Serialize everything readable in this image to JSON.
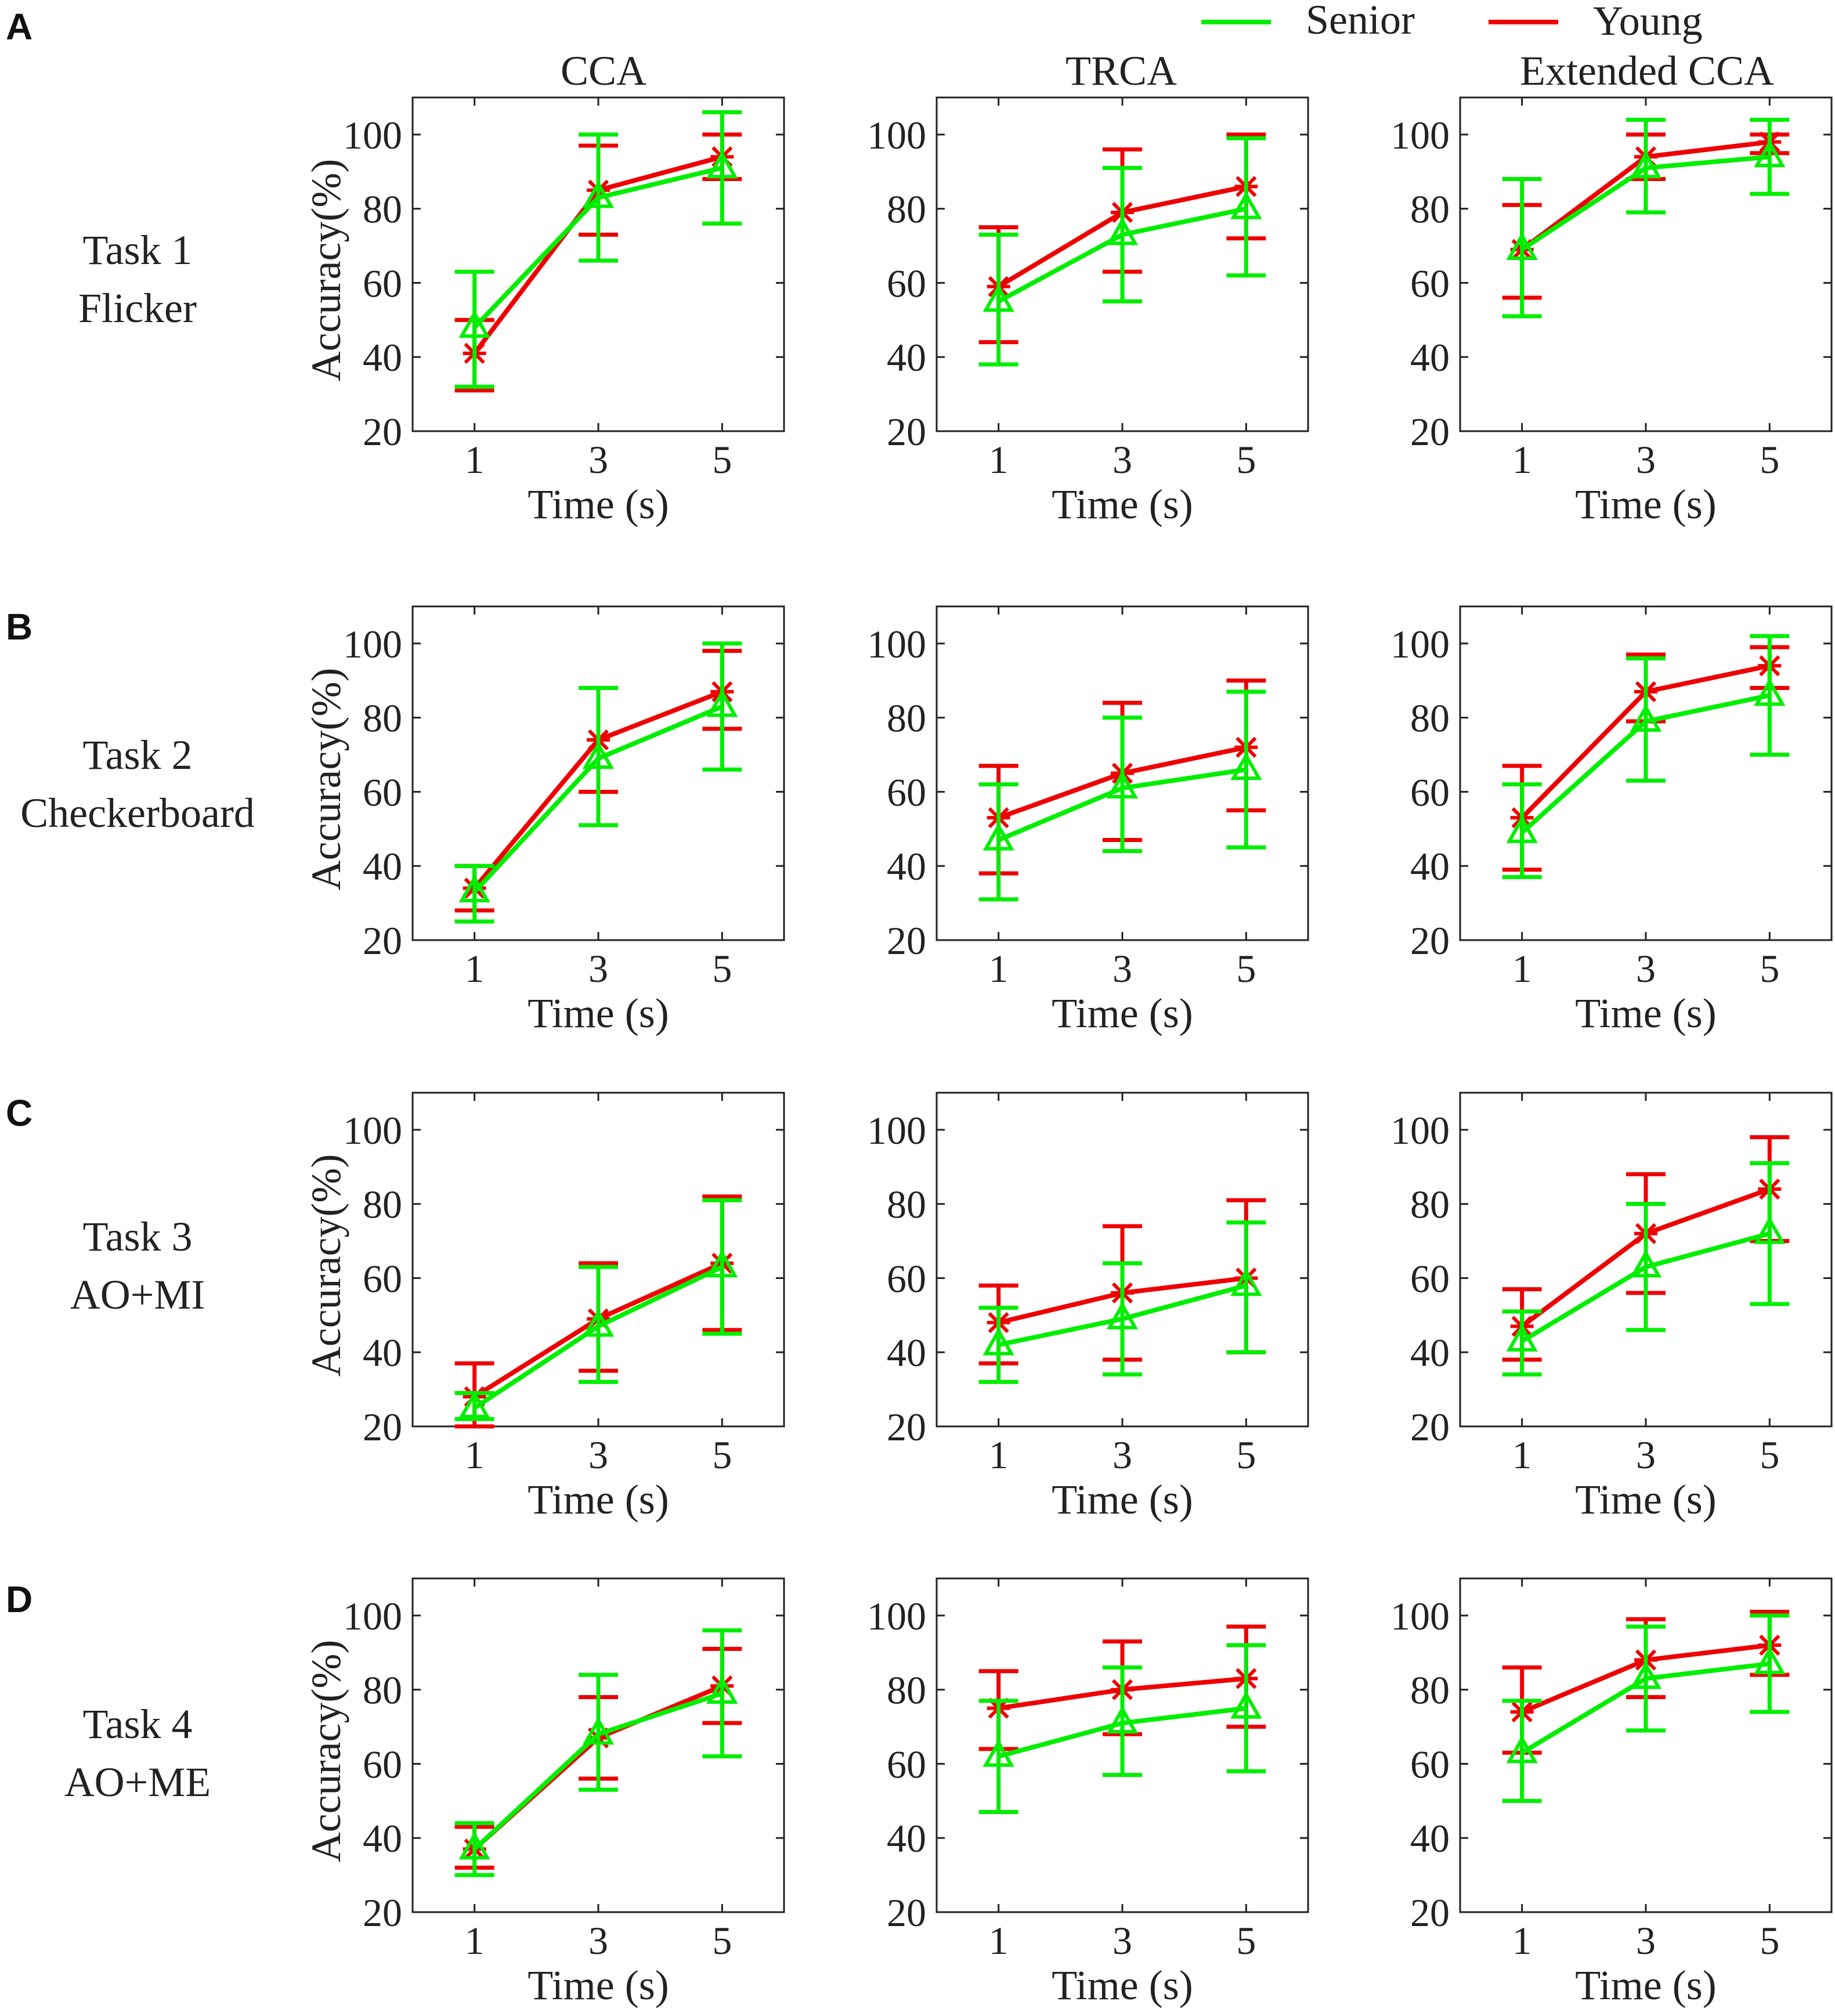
{
  "legend": {
    "entries": [
      {
        "name": "Senior",
        "color": "#00ee00"
      },
      {
        "name": "Young",
        "color": "#ee0000"
      }
    ],
    "placement": "top-right"
  },
  "column_titles": [
    "CCA",
    "TRCA",
    "Extended CCA"
  ],
  "rows": [
    {
      "letter": "A",
      "task_line1": "Task 1",
      "task_line2": "Flicker"
    },
    {
      "letter": "B",
      "task_line1": "Task 2",
      "task_line2": "Checkerboard"
    },
    {
      "letter": "C",
      "task_line1": "Task 3",
      "task_line2": "AO+MI"
    },
    {
      "letter": "D",
      "task_line1": "Task 4",
      "task_line2": "AO+ME"
    }
  ],
  "axis": {
    "ylabel": "Accuracy(%)",
    "xlabel": "Time (s)",
    "yticks": [
      20,
      40,
      60,
      80,
      100
    ],
    "xticks": [
      1,
      3,
      5
    ],
    "ylim": [
      20,
      110
    ],
    "xlim": [
      0,
      6
    ]
  },
  "chart_data": [
    {
      "type": "line",
      "row": 0,
      "col": 0,
      "title": "CCA",
      "task": "Task 1 Flicker",
      "x": [
        1,
        3,
        5
      ],
      "series": [
        {
          "name": "Senior",
          "values": [
            48,
            83,
            91
          ],
          "err_low": [
            32,
            66,
            76
          ],
          "err_high": [
            63,
            100,
            106
          ]
        },
        {
          "name": "Young",
          "values": [
            41,
            85,
            94
          ],
          "err_low": [
            31,
            73,
            88
          ],
          "err_high": [
            50,
            97,
            100
          ]
        }
      ]
    },
    {
      "type": "line",
      "row": 0,
      "col": 1,
      "title": "TRCA",
      "task": "Task 1 Flicker",
      "x": [
        1,
        3,
        5
      ],
      "series": [
        {
          "name": "Senior",
          "values": [
            55,
            73,
            80
          ],
          "err_low": [
            38,
            55,
            62
          ],
          "err_high": [
            73,
            91,
            99
          ]
        },
        {
          "name": "Young",
          "values": [
            59,
            79,
            86
          ],
          "err_low": [
            44,
            63,
            72
          ],
          "err_high": [
            75,
            96,
            100
          ]
        }
      ]
    },
    {
      "type": "line",
      "row": 0,
      "col": 2,
      "title": "Extended CCA",
      "task": "Task 1 Flicker",
      "x": [
        1,
        3,
        5
      ],
      "series": [
        {
          "name": "Senior",
          "values": [
            69,
            91,
            94
          ],
          "err_low": [
            51,
            79,
            84
          ],
          "err_high": [
            88,
            104,
            104
          ]
        },
        {
          "name": "Young",
          "values": [
            69,
            94,
            98
          ],
          "err_low": [
            56,
            88,
            95
          ],
          "err_high": [
            81,
            100,
            100
          ]
        }
      ]
    },
    {
      "type": "line",
      "row": 1,
      "col": 0,
      "title": "CCA",
      "task": "Task 2 Checkerboard",
      "x": [
        1,
        3,
        5
      ],
      "series": [
        {
          "name": "Senior",
          "values": [
            33,
            69,
            83
          ],
          "err_low": [
            25,
            51,
            66
          ],
          "err_high": [
            40,
            88,
            100
          ]
        },
        {
          "name": "Young",
          "values": [
            34,
            74,
            87
          ],
          "err_low": [
            28,
            60,
            77
          ],
          "err_high": [
            40,
            88,
            98
          ]
        }
      ]
    },
    {
      "type": "line",
      "row": 1,
      "col": 1,
      "title": "TRCA",
      "task": "Task 2 Checkerboard",
      "x": [
        1,
        3,
        5
      ],
      "series": [
        {
          "name": "Senior",
          "values": [
            47,
            61,
            66
          ],
          "err_low": [
            31,
            44,
            45
          ],
          "err_high": [
            62,
            80,
            87
          ]
        },
        {
          "name": "Young",
          "values": [
            53,
            65,
            72
          ],
          "err_low": [
            38,
            47,
            55
          ],
          "err_high": [
            67,
            84,
            90
          ]
        }
      ]
    },
    {
      "type": "line",
      "row": 1,
      "col": 2,
      "title": "Extended CCA",
      "task": "Task 2 Checkerboard",
      "x": [
        1,
        3,
        5
      ],
      "series": [
        {
          "name": "Senior",
          "values": [
            49,
            79,
            86
          ],
          "err_low": [
            37,
            63,
            70
          ],
          "err_high": [
            62,
            96,
            102
          ]
        },
        {
          "name": "Young",
          "values": [
            53,
            87,
            94
          ],
          "err_low": [
            39,
            79,
            88
          ],
          "err_high": [
            67,
            97,
            99
          ]
        }
      ]
    },
    {
      "type": "line",
      "row": 2,
      "col": 0,
      "title": "CCA",
      "task": "Task 3 AO+MI",
      "x": [
        1,
        3,
        5
      ],
      "series": [
        {
          "name": "Senior",
          "values": [
            25,
            47,
            63
          ],
          "err_low": [
            22,
            32,
            45
          ],
          "err_high": [
            29,
            63,
            81
          ]
        },
        {
          "name": "Young",
          "values": [
            28,
            49,
            64
          ],
          "err_low": [
            20,
            35,
            46
          ],
          "err_high": [
            37,
            64,
            82
          ]
        }
      ]
    },
    {
      "type": "line",
      "row": 2,
      "col": 1,
      "title": "TRCA",
      "task": "Task 3 AO+MI",
      "x": [
        1,
        3,
        5
      ],
      "series": [
        {
          "name": "Senior",
          "values": [
            42,
            49,
            58
          ],
          "err_low": [
            32,
            34,
            40
          ],
          "err_high": [
            52,
            64,
            75
          ]
        },
        {
          "name": "Young",
          "values": [
            48,
            56,
            60
          ],
          "err_low": [
            37,
            38,
            40
          ],
          "err_high": [
            58,
            74,
            81
          ]
        }
      ]
    },
    {
      "type": "line",
      "row": 2,
      "col": 2,
      "title": "Extended CCA",
      "task": "Task 3 AO+MI",
      "x": [
        1,
        3,
        5
      ],
      "series": [
        {
          "name": "Senior",
          "values": [
            43,
            63,
            72
          ],
          "err_low": [
            34,
            46,
            53
          ],
          "err_high": [
            51,
            80,
            91
          ]
        },
        {
          "name": "Young",
          "values": [
            47,
            72,
            84
          ],
          "err_low": [
            38,
            56,
            70
          ],
          "err_high": [
            57,
            88,
            98
          ]
        }
      ]
    },
    {
      "type": "line",
      "row": 3,
      "col": 0,
      "title": "CCA",
      "task": "Task 4 AO+ME",
      "x": [
        1,
        3,
        5
      ],
      "series": [
        {
          "name": "Senior",
          "values": [
            37,
            68,
            79
          ],
          "err_low": [
            30,
            53,
            62
          ],
          "err_high": [
            44,
            84,
            96
          ]
        },
        {
          "name": "Young",
          "values": [
            37,
            67,
            81
          ],
          "err_low": [
            32,
            56,
            71
          ],
          "err_high": [
            43,
            78,
            91
          ]
        }
      ]
    },
    {
      "type": "line",
      "row": 3,
      "col": 1,
      "title": "TRCA",
      "task": "Task 4 AO+ME",
      "x": [
        1,
        3,
        5
      ],
      "series": [
        {
          "name": "Senior",
          "values": [
            62,
            71,
            75
          ],
          "err_low": [
            47,
            57,
            58
          ],
          "err_high": [
            77,
            86,
            92
          ]
        },
        {
          "name": "Young",
          "values": [
            75,
            80,
            83
          ],
          "err_low": [
            64,
            68,
            70
          ],
          "err_high": [
            85,
            93,
            97
          ]
        }
      ]
    },
    {
      "type": "line",
      "row": 3,
      "col": 2,
      "title": "Extended CCA",
      "task": "Task 4 AO+ME",
      "x": [
        1,
        3,
        5
      ],
      "series": [
        {
          "name": "Senior",
          "values": [
            63,
            83,
            87
          ],
          "err_low": [
            50,
            69,
            74
          ],
          "err_high": [
            77,
            97,
            100
          ]
        },
        {
          "name": "Young",
          "values": [
            74,
            88,
            92
          ],
          "err_low": [
            63,
            78,
            84
          ],
          "err_high": [
            86,
            99,
            101
          ]
        }
      ]
    }
  ]
}
